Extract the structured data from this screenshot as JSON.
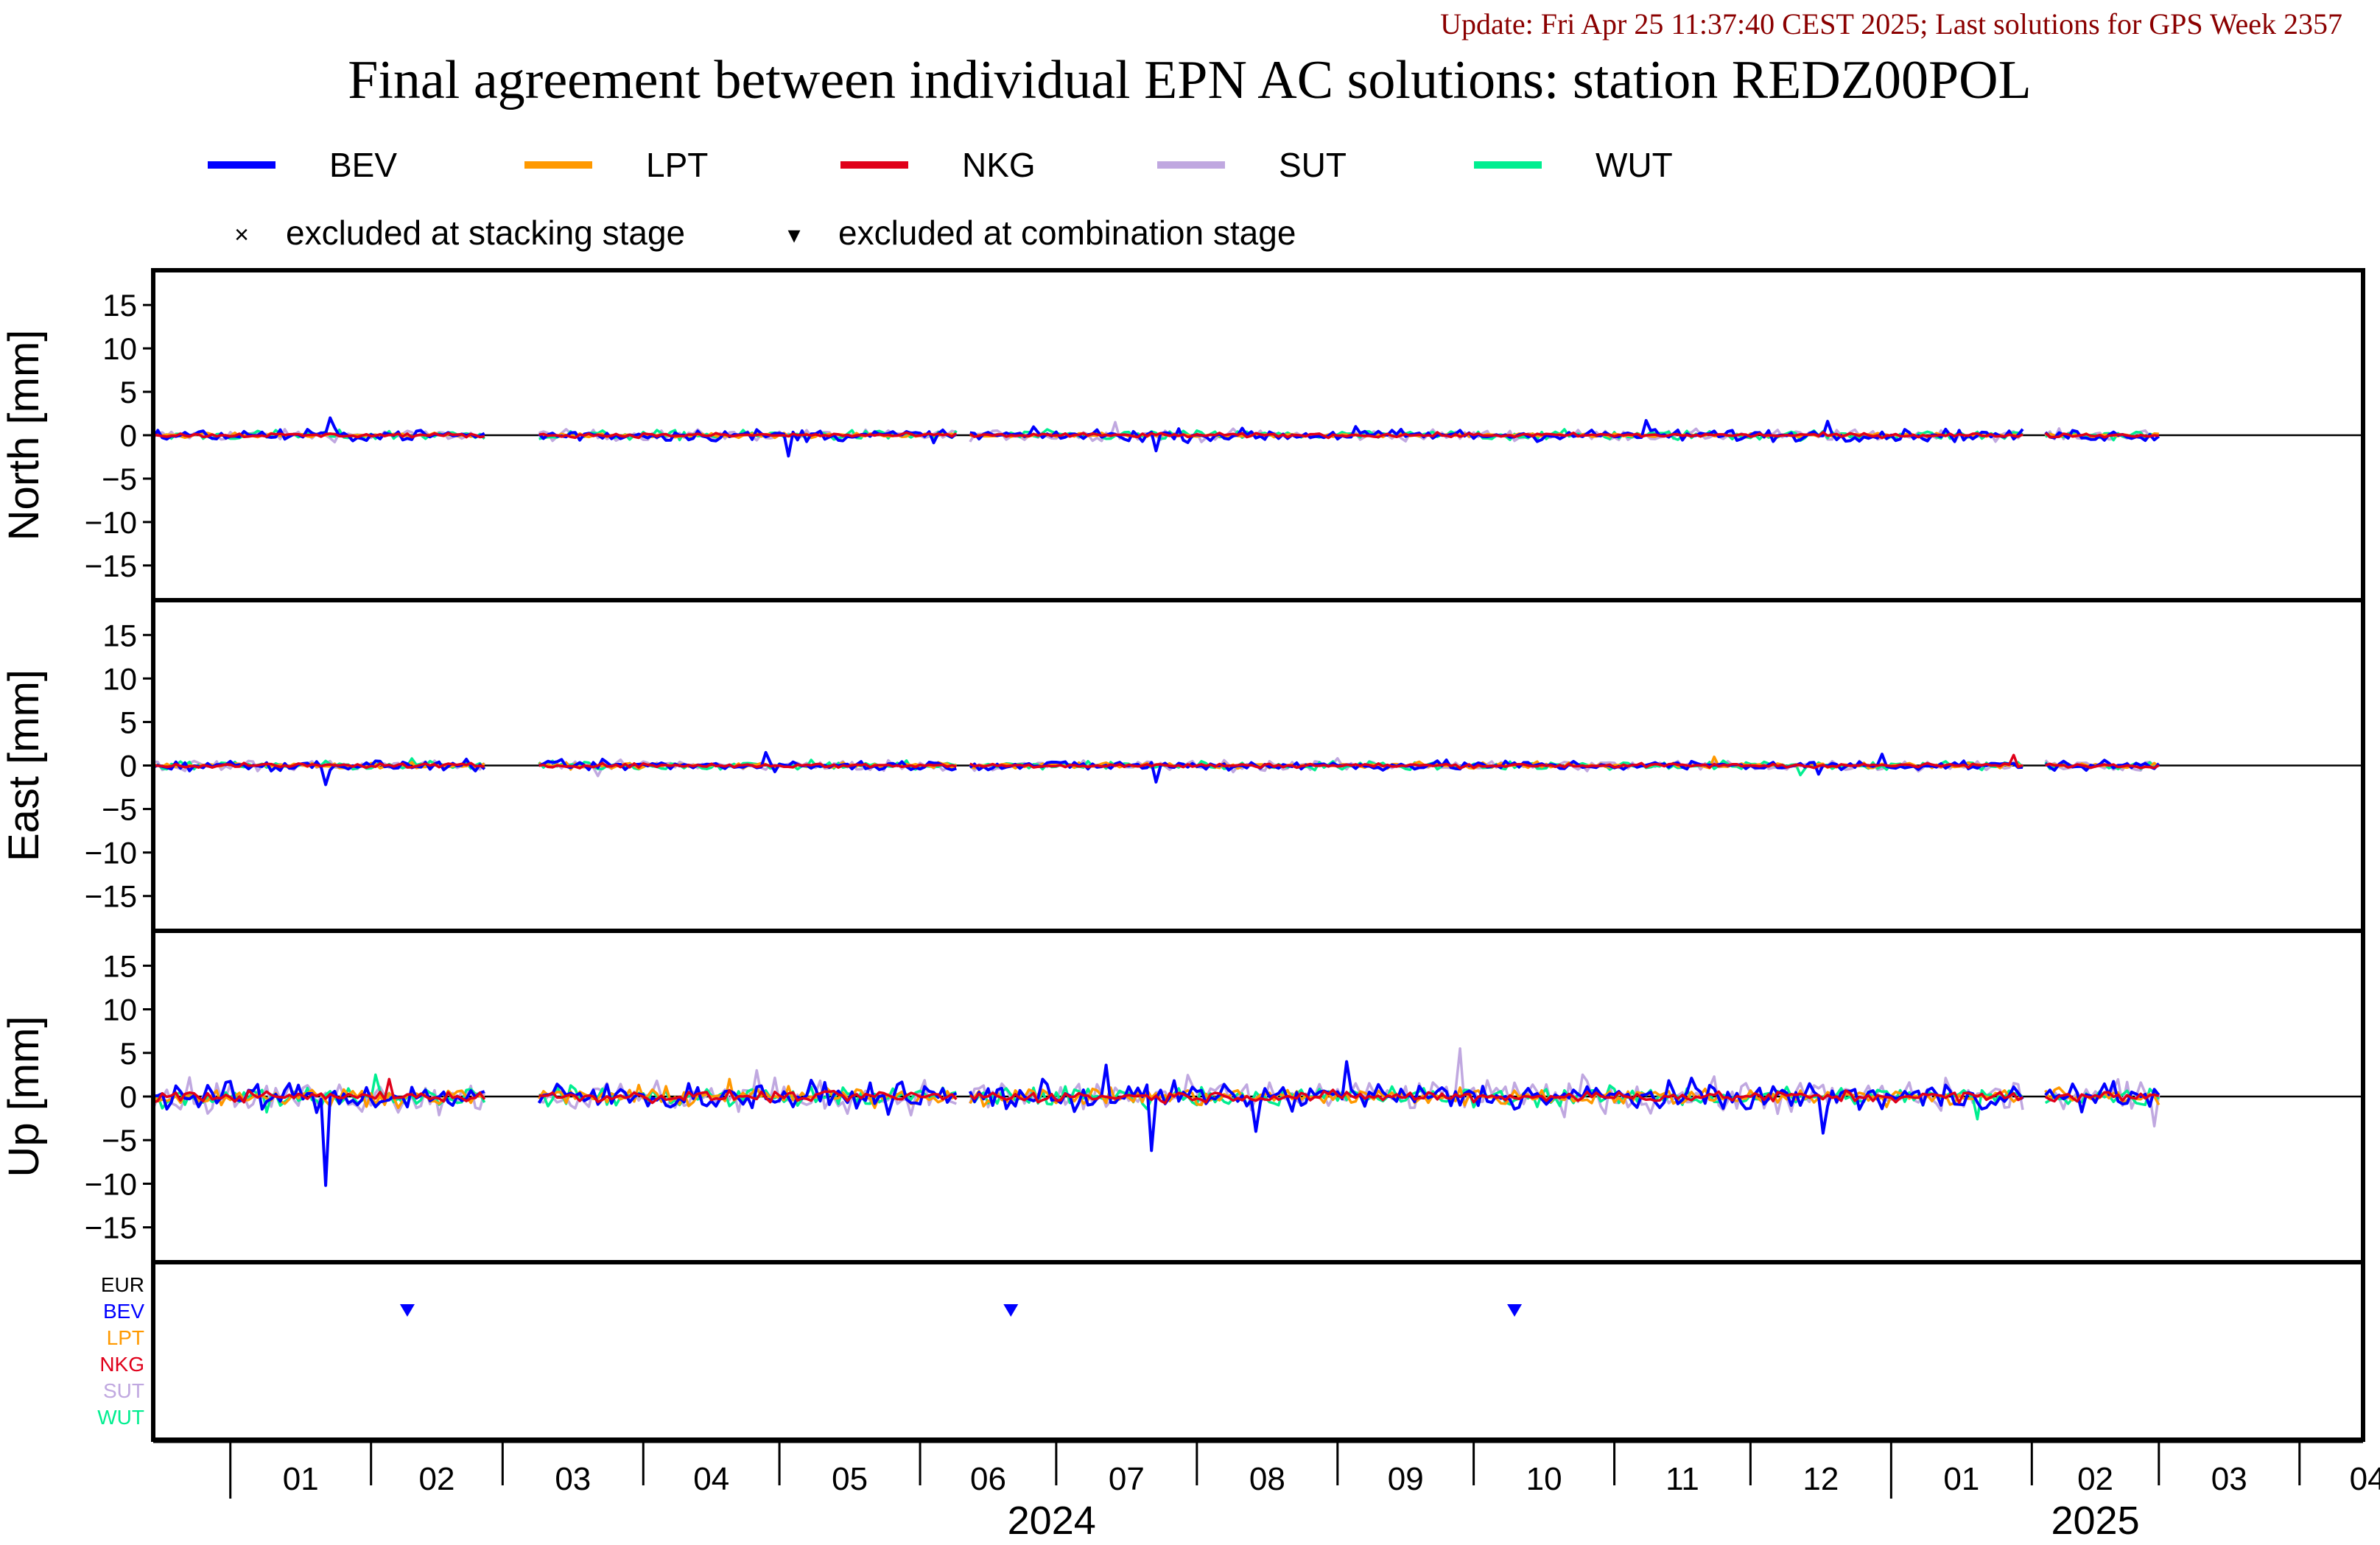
{
  "update_text": "Update: Fri Apr 25 11:37:40 CEST 2025; Last solutions for GPS Week 2357",
  "title": "Final agreement between individual EPN AC solutions: station REDZ00POL",
  "colors": {
    "BEV": "#0000ff",
    "LPT": "#ff9900",
    "NKG": "#e0001a",
    "SUT": "#c0a8e0",
    "WUT": "#00ee90",
    "EUR": "#000000",
    "update": "#8b0000"
  },
  "legend": {
    "series": [
      "BEV",
      "LPT",
      "NKG",
      "SUT",
      "WUT"
    ],
    "marker_stacking": "×",
    "stacking_label": "excluded at stacking stage",
    "marker_combination": "▾",
    "combination_label": "excluded at combination stage"
  },
  "chart_data": {
    "type": "line",
    "x_start": "2023-12-15",
    "x_end": "2025-04-15",
    "month_ticks": [
      "01",
      "02",
      "03",
      "04",
      "05",
      "06",
      "07",
      "08",
      "09",
      "10",
      "11",
      "12",
      "01",
      "02",
      "03",
      "04"
    ],
    "year_labels": [
      {
        "year": "2024",
        "at": "2024-06-30"
      },
      {
        "year": "2025",
        "at": "2025-02-15"
      }
    ],
    "ylim": [
      -19,
      19
    ],
    "yticks": [
      15,
      10,
      5,
      0,
      -5,
      -10,
      -15
    ],
    "gaps": [
      [
        "2024-02-26",
        "2024-03-09"
      ],
      [
        "2024-06-09",
        "2024-06-12"
      ],
      [
        "2025-01-30",
        "2025-02-04"
      ]
    ],
    "data_end": "2025-03-01",
    "panels": [
      {
        "ylabel": "North [mm]",
        "series": [
          {
            "name": "BEV",
            "amp": 0.55,
            "spikes": [
              [
                "2024-01-23",
                2.0
              ],
              [
                "2024-05-03",
                -2.4
              ],
              [
                "2024-07-23",
                -1.8
              ],
              [
                "2024-11-08",
                1.7
              ],
              [
                "2024-12-18",
                1.6
              ],
              [
                "2024-09-05",
                1.0
              ]
            ]
          },
          {
            "name": "LPT",
            "amp": 0.2,
            "spikes": []
          },
          {
            "name": "NKG",
            "amp": 0.2,
            "spikes": []
          },
          {
            "name": "SUT",
            "amp": 0.5,
            "spikes": [
              [
                "2024-07-14",
                1.5
              ]
            ]
          },
          {
            "name": "WUT",
            "amp": 0.45,
            "spikes": []
          }
        ]
      },
      {
        "ylabel": "East [mm]",
        "series": [
          {
            "name": "BEV",
            "amp": 0.45,
            "spikes": [
              [
                "2024-01-22",
                -2.2
              ],
              [
                "2024-04-28",
                1.5
              ],
              [
                "2024-07-23",
                -1.9
              ],
              [
                "2024-12-16",
                -1.0
              ],
              [
                "2024-12-30",
                1.3
              ]
            ]
          },
          {
            "name": "LPT",
            "amp": 0.25,
            "spikes": [
              [
                "2024-11-23",
                1.0
              ]
            ]
          },
          {
            "name": "NKG",
            "amp": 0.2,
            "spikes": [
              [
                "2025-01-28",
                1.2
              ]
            ]
          },
          {
            "name": "SUT",
            "amp": 0.5,
            "spikes": [
              [
                "2024-03-22",
                -1.2
              ]
            ]
          },
          {
            "name": "WUT",
            "amp": 0.4,
            "spikes": [
              [
                "2024-02-10",
                0.8
              ],
              [
                "2024-12-12",
                -1.1
              ]
            ]
          }
        ]
      },
      {
        "ylabel": "Up [mm]",
        "series": [
          {
            "name": "BEV",
            "amp": 1.3,
            "spikes": [
              [
                "2024-01-22",
                -10.2
              ],
              [
                "2024-07-22",
                -6.2
              ],
              [
                "2024-07-12",
                3.6
              ],
              [
                "2024-08-14",
                -4.0
              ],
              [
                "2024-09-03",
                4.0
              ],
              [
                "2024-12-17",
                -4.2
              ]
            ]
          },
          {
            "name": "LPT",
            "amp": 0.8,
            "spikes": [
              [
                "2024-04-20",
                2.0
              ]
            ]
          },
          {
            "name": "NKG",
            "amp": 0.5,
            "spikes": [
              [
                "2024-02-05",
                2.0
              ]
            ]
          },
          {
            "name": "SUT",
            "amp": 1.5,
            "spikes": [
              [
                "2024-04-26",
                3.0
              ],
              [
                "2024-09-28",
                5.5
              ],
              [
                "2025-02-28",
                -3.4
              ],
              [
                "2024-10-25",
                2.5
              ]
            ]
          },
          {
            "name": "WUT",
            "amp": 0.9,
            "spikes": [
              [
                "2024-02-02",
                2.5
              ],
              [
                "2024-01-09",
                -1.8
              ],
              [
                "2025-01-20",
                -2.6
              ]
            ]
          }
        ]
      }
    ],
    "exclusions": {
      "rows": [
        "EUR",
        "BEV",
        "LPT",
        "NKG",
        "SUT",
        "WUT"
      ],
      "combination_stage": [
        {
          "solution": "BEV",
          "date": "2024-02-09"
        },
        {
          "solution": "BEV",
          "date": "2024-06-21"
        },
        {
          "solution": "BEV",
          "date": "2024-10-10"
        }
      ],
      "stacking_stage": []
    }
  }
}
